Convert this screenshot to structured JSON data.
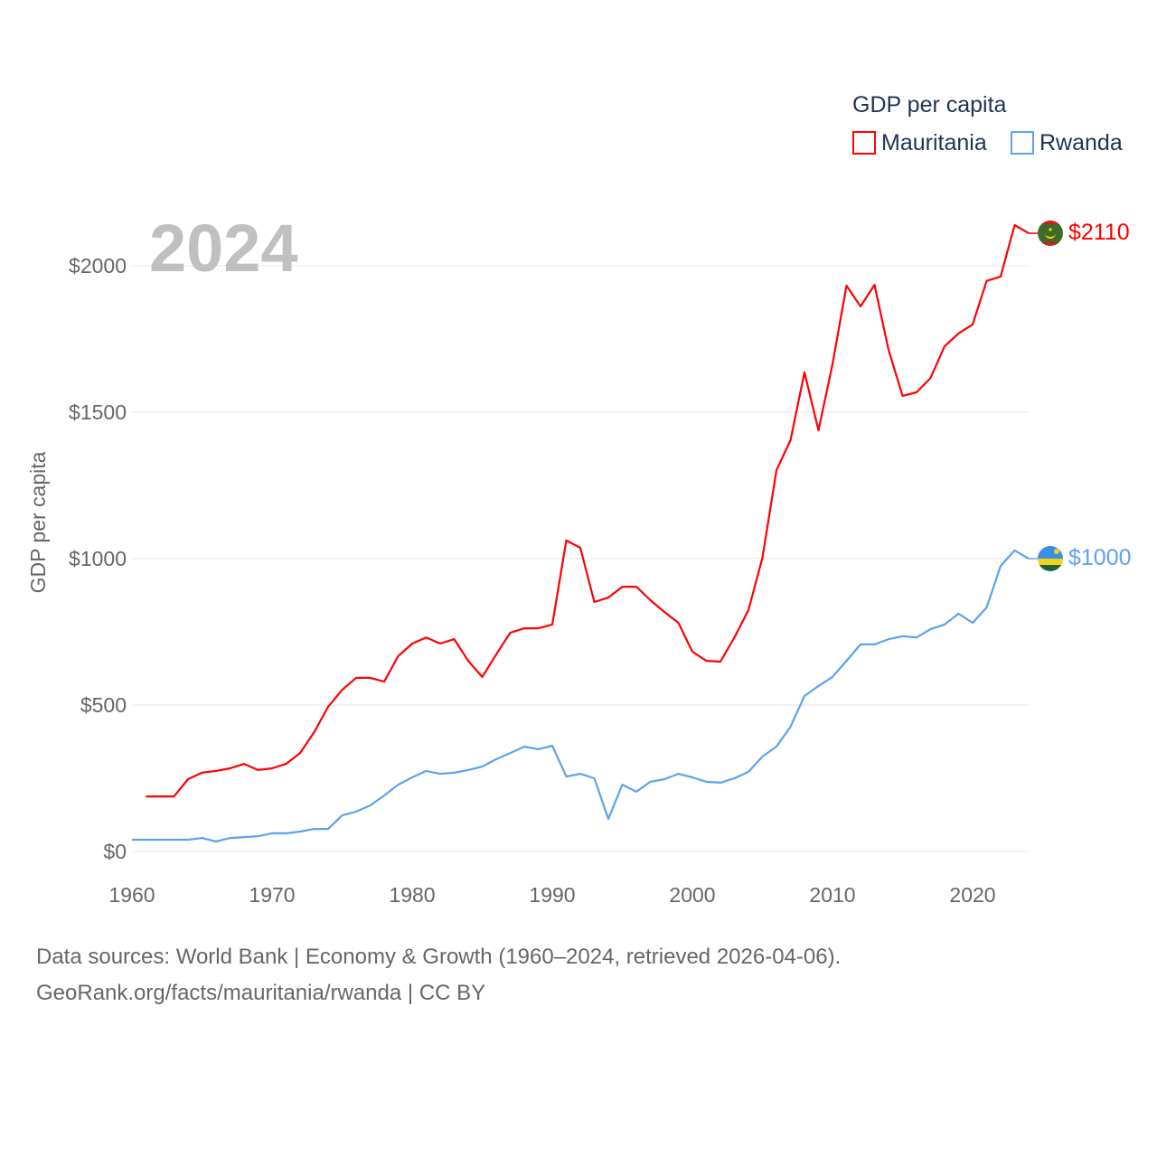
{
  "chart_data": {
    "type": "line",
    "title": "GDP per capita",
    "ylabel": "GDP per capita",
    "xlabel": "",
    "year_label": "2024",
    "xlim": [
      1960,
      2024
    ],
    "ylim": [
      0,
      2000
    ],
    "x_ticks": [
      1960,
      1970,
      1980,
      1990,
      2000,
      2010,
      2020
    ],
    "y_ticks": [
      0,
      500,
      1000,
      1500,
      2000
    ],
    "y_tick_labels": [
      "$0",
      "$500",
      "$1000",
      "$1500",
      "$2000"
    ],
    "x_tick_labels": [
      "1960",
      "1970",
      "1980",
      "1990",
      "2000",
      "2010",
      "2020"
    ],
    "grid": true,
    "legend": {
      "title": "GDP per capita",
      "placement": "top-right"
    },
    "series": [
      {
        "name": "Mauritania",
        "color": "#ff0000",
        "end_label": "$2110",
        "start_year": 1961,
        "values": [
          188,
          188,
          188,
          247,
          269,
          275,
          284,
          299,
          278,
          284,
          299,
          336,
          407,
          494,
          552,
          593,
          593,
          580,
          667,
          710,
          731,
          710,
          725,
          651,
          596,
          673,
          747,
          762,
          762,
          775,
          1062,
          1037,
          852,
          867,
          904,
          904,
          858,
          818,
          781,
          682,
          651,
          648,
          731,
          824,
          1003,
          1302,
          1404,
          1636,
          1438,
          1664,
          1932,
          1861,
          1935,
          1713,
          1556,
          1568,
          1617,
          1725,
          1769,
          1799,
          1948,
          1963,
          2139,
          2111
        ]
      },
      {
        "name": "Rwanda",
        "color": "#5ba3ec",
        "end_label": "$1000",
        "start_year": 1960,
        "values": [
          40,
          40,
          40,
          40,
          40,
          46,
          34,
          46,
          49,
          52,
          62,
          62,
          68,
          77,
          77,
          123,
          136,
          157,
          191,
          228,
          253,
          275,
          265,
          269,
          278,
          290,
          315,
          336,
          358,
          349,
          361,
          256,
          265,
          250,
          111,
          228,
          204,
          238,
          247,
          265,
          253,
          238,
          235,
          250,
          272,
          324,
          358,
          426,
          531,
          565,
          596,
          651,
          707,
          707,
          725,
          735,
          731,
          759,
          775,
          812,
          781,
          833,
          975,
          1028,
          1000
        ]
      }
    ]
  },
  "footer": {
    "line1": "Data sources: World Bank | Economy & Growth (1960–2024, retrieved 2026-04-06).",
    "line2": "GeoRank.org/facts/mauritania/rwanda | CC BY"
  }
}
